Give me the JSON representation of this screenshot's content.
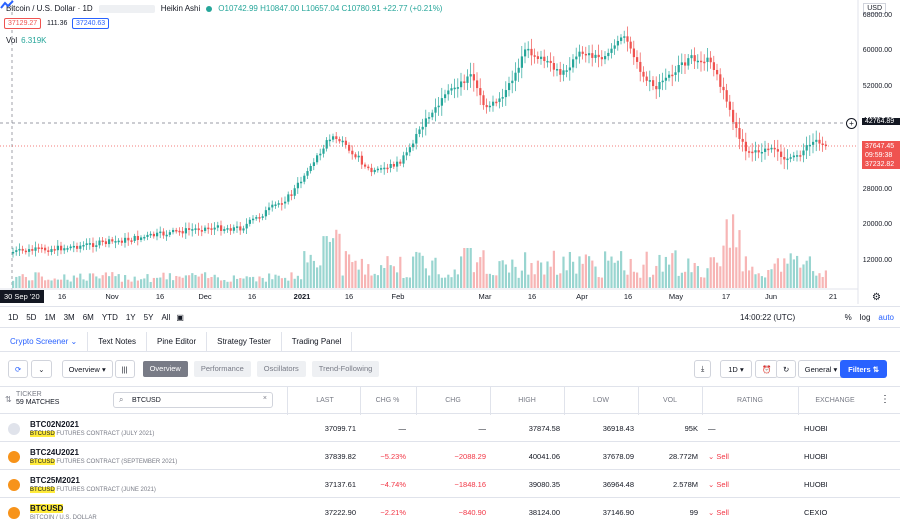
{
  "legend": {
    "symbol": "Bitcoin / U.S. Dollar · 1D",
    "chart_type": "Heikin Ashi",
    "ohlc": "O10742.99 H10847.00 L10657.04 C10780.91 +22.77 (+0.21%)",
    "sell_price": "37129.27",
    "spread": "111.36",
    "buy_price": "37240.63",
    "vol_label": "Vol",
    "vol_value": "6.319K"
  },
  "axis": {
    "currency": "USD",
    "ticks": [
      "68000.00",
      "60000.00",
      "52000.00",
      "44000.00",
      "36000.00",
      "28000.00",
      "20000.00",
      "12000.00"
    ],
    "crosshair_price": "42764.89",
    "last_price": "37647.45",
    "countdown": "09:59:38",
    "low_tag": "37232.82"
  },
  "xaxis": {
    "date_tag": "30 Sep '20",
    "labels": [
      "16",
      "Nov",
      "16",
      "Dec",
      "16",
      "2021",
      "16",
      "Feb",
      "Mar",
      "16",
      "Apr",
      "16",
      "May",
      "17",
      "Jun",
      "21"
    ]
  },
  "timeframes": [
    "1D",
    "5D",
    "1M",
    "3M",
    "6M",
    "YTD",
    "1Y",
    "5Y",
    "All"
  ],
  "clock": "14:00:22 (UTC)",
  "scale_opts": [
    "%",
    "log",
    "auto"
  ],
  "panel_tabs": [
    "Crypto Screener",
    "Text Notes",
    "Pine Editor",
    "Strategy Tester",
    "Trading Panel"
  ],
  "screener": {
    "preset": "Overview",
    "views": [
      "Overview",
      "Performance",
      "Oscillators",
      "Trend-Following"
    ],
    "interval": "1D",
    "exchange_filter": "General",
    "filters_label": "Filters"
  },
  "table": {
    "ticker_header": "TICKER",
    "matches": "59 MATCHES",
    "search_value": "BTCUSD",
    "columns": [
      "LAST",
      "CHG %",
      "CHG",
      "HIGH",
      "LOW",
      "VOL",
      "RATING",
      "EXCHANGE"
    ],
    "rows": [
      {
        "symbol": "BTC02N2021",
        "desc_hl": "BTCUSD",
        "desc": " FUTURES CONTRACT (JULY 2021)",
        "last": "37099.71",
        "chgp": "—",
        "chg": "—",
        "high": "37874.58",
        "low": "36918.43",
        "vol": "95K",
        "rating": "—",
        "exchange": "HUOBI",
        "icon": "#e0e3eb"
      },
      {
        "symbol": "BTC24U2021",
        "desc_hl": "BTCUSD",
        "desc": " FUTURES CONTRACT (SEPTEMBER 2021)",
        "last": "37839.82",
        "chgp": "−5.23%",
        "chg": "−2088.29",
        "high": "40041.06",
        "low": "37678.09",
        "vol": "28.772M",
        "rating": "Sell",
        "exchange": "HUOBI",
        "icon": "#f7931a"
      },
      {
        "symbol": "BTC25M2021",
        "desc_hl": "BTCUSD",
        "desc": " FUTURES CONTRACT (JUNE 2021)",
        "last": "37137.61",
        "chgp": "−4.74%",
        "chg": "−1848.16",
        "high": "39080.35",
        "low": "36964.48",
        "vol": "2.578M",
        "rating": "Sell",
        "exchange": "HUOBI",
        "icon": "#f7931a"
      },
      {
        "symbol": "BTCUSD",
        "desc_hl": "",
        "desc": "BITCOIN / U.S. DOLLAR",
        "last": "37222.90",
        "chgp": "−2.21%",
        "chg": "−840.90",
        "high": "38124.00",
        "low": "37146.90",
        "vol": "99",
        "rating": "Sell",
        "exchange": "CEXIO",
        "icon": "#f7931a"
      }
    ]
  },
  "colors": {
    "up": "#26a69a",
    "down": "#ef5350",
    "accent": "#2962ff",
    "vol_up": "#80cbc4",
    "vol_down": "#f5a3a3"
  }
}
